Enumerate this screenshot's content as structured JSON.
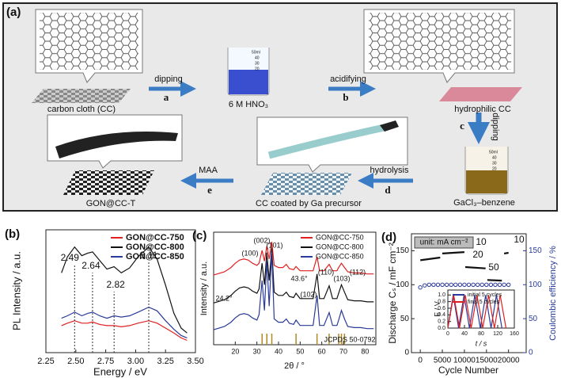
{
  "panel_a": {
    "label": "(a)",
    "carbon_cloth": "carbon cloth (CC)",
    "step_a": {
      "action": "dipping",
      "letter": "a"
    },
    "acid": "6 M HNO₃",
    "step_b": {
      "action": "acidifying",
      "letter": "b"
    },
    "hydrophilic": "hydrophilic CC",
    "step_c": {
      "action": "dipping",
      "letter": "c"
    },
    "gacl3": "GaCl₃–benzene",
    "step_d": {
      "action": "hydrolysis",
      "letter": "d"
    },
    "coated": "CC coated by Ga precursor",
    "step_e": {
      "action": "MAA",
      "letter": "e"
    },
    "product": "GON@CC-T",
    "beaker_marks": [
      "50ml",
      "40",
      "30",
      "20"
    ]
  },
  "chart_data": [
    {
      "type": "line",
      "label": "(b)",
      "xlabel": "Energy / eV",
      "ylabel": "PL Intensity / a.u.",
      "xlim": [
        2.25,
        3.5
      ],
      "xticks": [
        2.25,
        {
          "value": 2.5,
          "label": "2.50"
        },
        2.75,
        {
          "value": 3.0,
          "label": "3.00"
        },
        3.25,
        {
          "value": 3.5,
          "label": "3.50"
        }
      ],
      "ylim": [
        0,
        10
      ],
      "legend": "upper right",
      "x": [
        2.38,
        2.43,
        2.49,
        2.55,
        2.6,
        2.64,
        2.7,
        2.76,
        2.82,
        2.88,
        2.95,
        3.02,
        3.11,
        3.18,
        3.25,
        3.32,
        3.38,
        3.43
      ],
      "series": [
        {
          "name": "GON@CC-750",
          "color": "#e02020",
          "values": [
            2.2,
            2.4,
            2.6,
            2.4,
            2.4,
            2.5,
            2.3,
            2.2,
            2.2,
            2.1,
            2.2,
            2.4,
            2.6,
            2.4,
            2.0,
            1.6,
            1.2,
            1.0
          ]
        },
        {
          "name": "GON@CC-800",
          "color": "#111111",
          "values": [
            6.5,
            7.8,
            8.6,
            7.9,
            8.1,
            8.2,
            7.5,
            6.8,
            7.0,
            6.5,
            6.9,
            7.8,
            8.6,
            7.6,
            5.5,
            3.2,
            2.0,
            1.6
          ]
        },
        {
          "name": "GON@CC-850",
          "color": "#2a3a9a",
          "values": [
            2.8,
            3.0,
            3.3,
            3.0,
            3.2,
            3.3,
            3.0,
            2.8,
            3.0,
            2.9,
            3.0,
            3.3,
            3.7,
            3.4,
            2.6,
            1.9,
            1.4,
            1.2
          ]
        }
      ],
      "peaks": [
        2.49,
        2.64,
        2.82,
        3.11
      ]
    },
    {
      "type": "line",
      "label": "(c)",
      "xlabel": "2θ / °",
      "ylabel": "Intensity / a.u.",
      "xlim": [
        10,
        85
      ],
      "xticks": [
        20,
        30,
        40,
        50,
        60,
        70,
        80
      ],
      "ylim": [
        0,
        10.5
      ],
      "legend": "upper right",
      "x": [
        10,
        15,
        18,
        20,
        22,
        24,
        26,
        28,
        30,
        31,
        32.4,
        33.5,
        34.6,
        35.7,
        36.9,
        38,
        40,
        42,
        43.6,
        45,
        47,
        48.1,
        50,
        53,
        56,
        57.8,
        59,
        61,
        63.4,
        65,
        67,
        67.8,
        69.1,
        70.5,
        72,
        75,
        78,
        81,
        84
      ],
      "series": [
        {
          "name": "GON@CC-750",
          "color": "#e02020",
          "values": [
            6.5,
            6.8,
            7.2,
            7.6,
            7.9,
            8.0,
            7.9,
            7.6,
            7.4,
            7.6,
            8.8,
            7.8,
            9.2,
            8.0,
            9.6,
            7.4,
            7.2,
            7.2,
            7.5,
            7.1,
            7.0,
            7.3,
            6.9,
            6.9,
            6.9,
            8.2,
            6.9,
            6.9,
            7.5,
            6.9,
            6.9,
            7.2,
            7.6,
            7.2,
            6.8,
            6.7,
            6.7,
            6.6,
            6.6
          ]
        },
        {
          "name": "GON@CC-800",
          "color": "#111111",
          "values": [
            3.9,
            4.2,
            4.6,
            5.0,
            5.3,
            5.4,
            5.3,
            5.0,
            4.8,
            5.2,
            7.6,
            5.6,
            8.6,
            6.0,
            9.0,
            4.9,
            4.6,
            4.6,
            4.9,
            4.5,
            4.4,
            4.8,
            4.3,
            4.3,
            4.3,
            6.6,
            4.3,
            4.3,
            5.5,
            4.3,
            4.3,
            4.8,
            5.6,
            4.9,
            4.2,
            4.1,
            4.1,
            4.0,
            4.0
          ]
        },
        {
          "name": "GON@CC-850",
          "color": "#2a3a9a",
          "values": [
            1.4,
            1.7,
            2.1,
            2.5,
            2.8,
            2.9,
            2.8,
            2.5,
            2.3,
            2.8,
            6.0,
            3.2,
            7.8,
            3.6,
            8.6,
            2.4,
            2.1,
            2.1,
            2.4,
            2.0,
            1.9,
            2.3,
            1.8,
            1.8,
            1.8,
            4.6,
            1.8,
            1.8,
            3.0,
            1.8,
            1.8,
            2.3,
            3.2,
            2.4,
            1.7,
            1.6,
            1.6,
            1.5,
            1.5
          ]
        }
      ],
      "annotations": [
        "24.2°",
        "(100)",
        "(002)",
        "(101)",
        "43.6°",
        "(102)",
        "(110)",
        "(103)",
        "(112)"
      ],
      "reference": {
        "label": "JCPDS 50-0792",
        "color": "#b08a20",
        "positions": [
          32.4,
          34.6,
          36.9,
          48.1,
          57.8,
          63.4,
          67.8,
          69.1,
          70.5
        ]
      }
    },
    {
      "type": "line",
      "label": "(d)",
      "xlabel": "Cycle Number",
      "ylabel": "Discharge Cₛ / mF cm⁻²",
      "y2label": "Coulombic efficiency / %",
      "xlim": [
        -2000,
        24000
      ],
      "xticks": [
        0,
        5000,
        10000,
        15000,
        20000
      ],
      "ylim": [
        0,
        175
      ],
      "yticks": [
        0,
        50,
        100,
        150
      ],
      "y2lim": [
        0,
        175
      ],
      "y2ticks": [
        0,
        50,
        100,
        150
      ],
      "y2color": "#2a3a9a",
      "unit": "unit: mA cm⁻²",
      "rate_labels": [
        "10",
        "20",
        "50",
        "10"
      ],
      "series": [
        {
          "color": "#111111",
          "x": [
            0,
            4500,
            null,
            5000,
            10000,
            null,
            10200,
            14800,
            null,
            15200,
            18500,
            null,
            19000,
            20000
          ],
          "values": [
            136,
            140,
            null,
            146,
            148,
            null,
            126,
            124,
            null,
            107,
            106,
            null,
            146,
            147
          ]
        },
        {
          "color": "#2a3a9a",
          "axis": "y2",
          "marker": "circle",
          "x": [
            0,
            1000,
            2000,
            3000,
            4000,
            5000,
            6000,
            7000,
            8000,
            9000,
            10000,
            11000,
            12000,
            13000,
            14000,
            15000,
            16000,
            17000,
            18000,
            19000,
            20000
          ],
          "values": [
            96,
            99,
            100,
            100,
            100,
            100,
            100,
            100,
            100,
            100,
            100,
            100,
            100,
            100,
            100,
            100,
            100,
            100,
            100,
            100,
            100
          ]
        }
      ]
    },
    {
      "type": "line",
      "xlabel": "t / s",
      "ylabel": "E / V",
      "xlim": [
        0,
        160
      ],
      "xticks": [
        0,
        40,
        80,
        120,
        160
      ],
      "ylim": [
        0,
        1.15
      ],
      "yticks": [
        {
          "value": 0,
          "label": "0.0"
        },
        0.2,
        0.4,
        0.6,
        0.8,
        {
          "value": 1,
          "label": "1.0"
        }
      ],
      "legend": "upper right",
      "series": [
        {
          "name": "initial 5 cycles",
          "color": "#2a3a9a",
          "x": [
            0,
            13,
            26,
            39,
            52,
            65,
            78,
            91,
            104,
            117,
            130
          ],
          "values": [
            0,
            1,
            0,
            1,
            0,
            1,
            0,
            1,
            0,
            1,
            0
          ]
        },
        {
          "name": "final 5 cycles",
          "color": "#e02020",
          "x": [
            0,
            14,
            28,
            42,
            56,
            70,
            84,
            98,
            112,
            126,
            140
          ],
          "values": [
            0,
            1,
            0,
            1,
            0,
            1,
            0,
            1,
            0,
            1,
            0
          ]
        }
      ]
    }
  ]
}
